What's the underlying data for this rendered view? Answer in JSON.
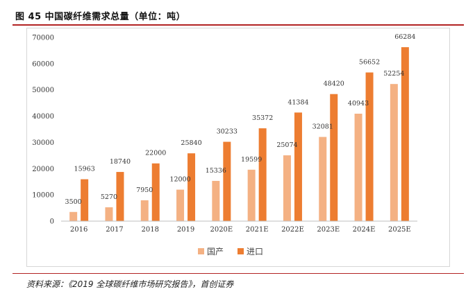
{
  "header": {
    "title": "图 45 中国碳纤维需求总量（单位：吨）"
  },
  "footer": {
    "source": "资料来源：《2019 全球碳纤维市场研究报告》，首创证券"
  },
  "colors": {
    "domestic": "#F4B183",
    "import": "#ED7D31",
    "rule": "#B22222"
  },
  "chart_data": {
    "type": "bar",
    "title": "中国碳纤维需求总量（单位：吨）",
    "categories": [
      "2016",
      "2017",
      "2018",
      "2019",
      "2020E",
      "2021E",
      "2022E",
      "2023E",
      "2024E",
      "2025E"
    ],
    "series": [
      {
        "name": "国产",
        "values": [
          3500,
          5270,
          7950,
          12000,
          15336,
          19599,
          25074,
          32081,
          40943,
          52254
        ]
      },
      {
        "name": "进口",
        "values": [
          15963,
          18740,
          22000,
          25840,
          30233,
          35372,
          41384,
          48420,
          56652,
          66284
        ]
      }
    ],
    "yticks": [
      "0",
      "10000",
      "20000",
      "30000",
      "40000",
      "50000",
      "60000",
      "70000"
    ],
    "ylim": [
      0,
      70000
    ],
    "xlabel": "",
    "ylabel": "",
    "legend": "bottom-center",
    "grid": false
  }
}
